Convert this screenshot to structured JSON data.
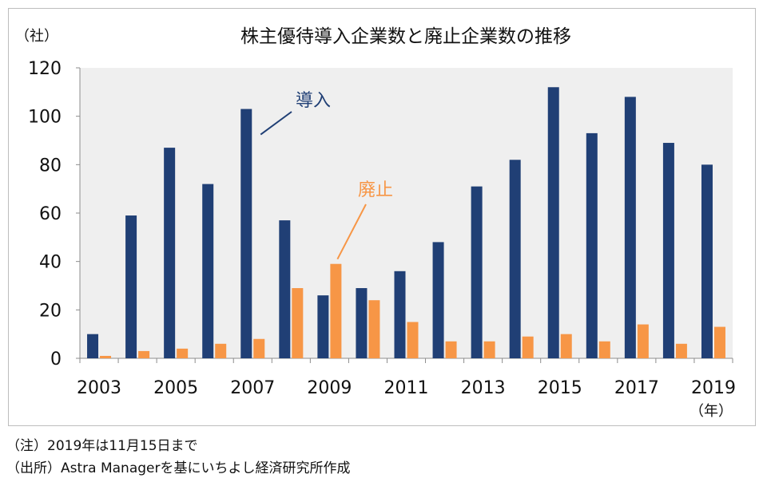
{
  "chart_data": {
    "type": "bar",
    "title": "株主優待導入企業数と廃止企業数の推移",
    "ylabel": "（社）",
    "xlabel": "（年）",
    "ylim": [
      0,
      120
    ],
    "yticks": [
      0,
      20,
      40,
      60,
      80,
      100,
      120
    ],
    "categories": [
      "2003",
      "2004",
      "2005",
      "2006",
      "2007",
      "2008",
      "2009",
      "2010",
      "2011",
      "2012",
      "2013",
      "2014",
      "2015",
      "2016",
      "2017",
      "2018",
      "2019"
    ],
    "xtick_labels": [
      "2003",
      "2005",
      "2007",
      "2009",
      "2011",
      "2013",
      "2015",
      "2017",
      "2019"
    ],
    "series": [
      {
        "name": "導入",
        "color": "#203f75",
        "values": [
          10,
          59,
          87,
          72,
          103,
          57,
          26,
          29,
          36,
          48,
          71,
          82,
          112,
          93,
          108,
          89,
          80
        ]
      },
      {
        "name": "廃止",
        "color": "#f79646",
        "values": [
          1,
          3,
          4,
          6,
          8,
          29,
          39,
          24,
          15,
          7,
          7,
          9,
          10,
          7,
          14,
          6,
          13
        ]
      }
    ],
    "annotations": [
      {
        "text": "導入",
        "series": "導入",
        "points_to": "2007"
      },
      {
        "text": "廃止",
        "series": "廃止",
        "points_to": "2009"
      }
    ],
    "plot_background": "#efefef",
    "grid": false
  },
  "notes": {
    "note1": "（注）2019年は11月15日まで",
    "note2": "（出所）Astra Managerを基にいちよし経済研究所作成"
  }
}
